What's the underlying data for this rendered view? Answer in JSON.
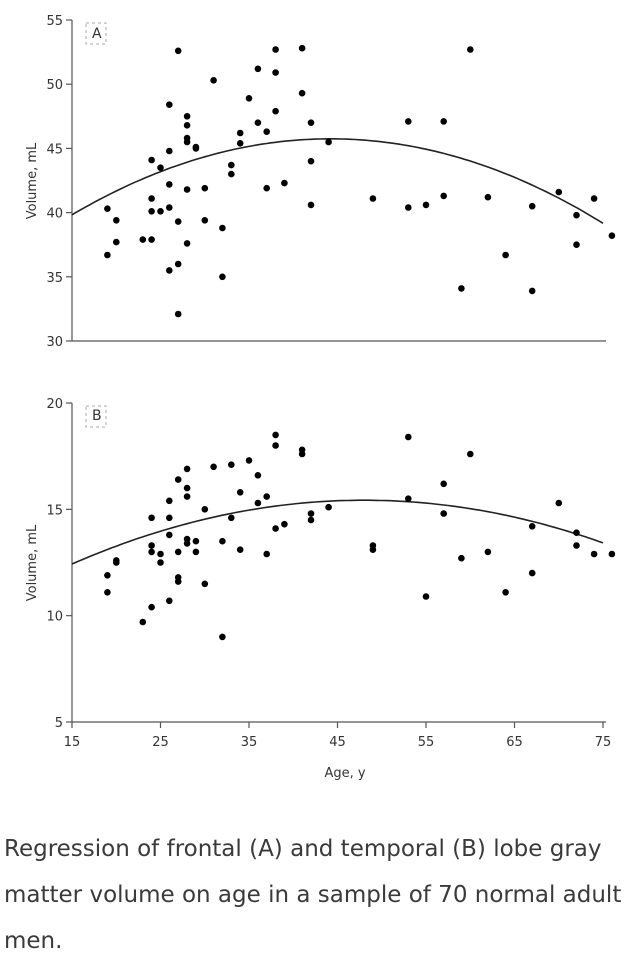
{
  "caption": "Regression of frontal (A) and temporal (B) lobe gray matter volume on age in a sample of 70 normal adult men.",
  "colors": {
    "points": "#000000",
    "curve": "#222222",
    "axis": "#555555"
  },
  "chart_data": [
    {
      "type": "scatter",
      "panel_label": "A",
      "xlabel": "",
      "ylabel": "Volume, mL",
      "xlim": [
        15,
        75
      ],
      "ylim": [
        30,
        55
      ],
      "x_ticks": [],
      "y_ticks": [
        30,
        35,
        40,
        45,
        50,
        55
      ],
      "fit": {
        "type": "quadratic",
        "a": -0.006937,
        "b": 0.6133,
        "c": 32.19
      },
      "points": [
        [
          19,
          40.3
        ],
        [
          19,
          36.7
        ],
        [
          20,
          39.4
        ],
        [
          20,
          37.7
        ],
        [
          23,
          37.9
        ],
        [
          24,
          37.9
        ],
        [
          24,
          44.1
        ],
        [
          24,
          41.1
        ],
        [
          24,
          40.1
        ],
        [
          25,
          40.1
        ],
        [
          25,
          43.5
        ],
        [
          26,
          48.4
        ],
        [
          26,
          44.8
        ],
        [
          26,
          42.2
        ],
        [
          26,
          40.4
        ],
        [
          26,
          35.5
        ],
        [
          27,
          52.6
        ],
        [
          27,
          39.3
        ],
        [
          27,
          36.0
        ],
        [
          27,
          32.1
        ],
        [
          28,
          47.5
        ],
        [
          28,
          46.8
        ],
        [
          28,
          45.8
        ],
        [
          28,
          45.5
        ],
        [
          28,
          41.8
        ],
        [
          28,
          37.6
        ],
        [
          29,
          45.1
        ],
        [
          29,
          45.0
        ],
        [
          30,
          41.9
        ],
        [
          30,
          39.4
        ],
        [
          31,
          50.3
        ],
        [
          32,
          38.8
        ],
        [
          32,
          35.0
        ],
        [
          33,
          43.7
        ],
        [
          33,
          43.0
        ],
        [
          34,
          46.2
        ],
        [
          34,
          45.4
        ],
        [
          35,
          48.9
        ],
        [
          36,
          51.2
        ],
        [
          36,
          47.0
        ],
        [
          37,
          46.3
        ],
        [
          37,
          41.9
        ],
        [
          38,
          52.7
        ],
        [
          38,
          50.9
        ],
        [
          38,
          47.9
        ],
        [
          39,
          42.3
        ],
        [
          41,
          52.8
        ],
        [
          41,
          49.3
        ],
        [
          42,
          47.0
        ],
        [
          42,
          44.0
        ],
        [
          42,
          40.6
        ],
        [
          44,
          45.5
        ],
        [
          49,
          41.1
        ],
        [
          53,
          47.1
        ],
        [
          53,
          40.4
        ],
        [
          55,
          40.6
        ],
        [
          57,
          47.1
        ],
        [
          57,
          41.3
        ],
        [
          59,
          34.1
        ],
        [
          60,
          52.7
        ],
        [
          62,
          41.2
        ],
        [
          64,
          36.7
        ],
        [
          67,
          40.5
        ],
        [
          67,
          33.9
        ],
        [
          70,
          41.6
        ],
        [
          72,
          39.8
        ],
        [
          72,
          37.5
        ],
        [
          74,
          41.1
        ],
        [
          76,
          38.2
        ]
      ]
    },
    {
      "type": "scatter",
      "panel_label": "B",
      "xlabel": "Age, y",
      "ylabel": "Volume, mL",
      "xlim": [
        15,
        75
      ],
      "ylim": [
        5,
        20
      ],
      "x_ticks": [
        15,
        25,
        35,
        45,
        55,
        65,
        75
      ],
      "y_ticks": [
        5,
        10,
        15,
        20
      ],
      "fit": {
        "type": "quadratic",
        "a": -0.002755,
        "b": 0.2645,
        "c": 9.08
      },
      "points": [
        [
          19,
          11.9
        ],
        [
          19,
          11.1
        ],
        [
          20,
          12.6
        ],
        [
          20,
          12.5
        ],
        [
          23,
          9.7
        ],
        [
          24,
          14.6
        ],
        [
          24,
          13.3
        ],
        [
          24,
          13.0
        ],
        [
          24,
          10.4
        ],
        [
          25,
          12.9
        ],
        [
          25,
          12.5
        ],
        [
          26,
          15.4
        ],
        [
          26,
          14.6
        ],
        [
          26,
          13.8
        ],
        [
          26,
          10.7
        ],
        [
          27,
          16.4
        ],
        [
          27,
          13.0
        ],
        [
          27,
          11.8
        ],
        [
          27,
          11.6
        ],
        [
          28,
          16.9
        ],
        [
          28,
          16.0
        ],
        [
          28,
          15.6
        ],
        [
          28,
          13.6
        ],
        [
          28,
          13.4
        ],
        [
          29,
          13.5
        ],
        [
          29,
          13.0
        ],
        [
          30,
          15.0
        ],
        [
          30,
          11.5
        ],
        [
          31,
          17.0
        ],
        [
          32,
          13.5
        ],
        [
          32,
          9.0
        ],
        [
          33,
          17.1
        ],
        [
          33,
          14.6
        ],
        [
          34,
          15.8
        ],
        [
          34,
          13.1
        ],
        [
          35,
          17.3
        ],
        [
          36,
          16.6
        ],
        [
          36,
          15.3
        ],
        [
          37,
          15.6
        ],
        [
          37,
          12.9
        ],
        [
          38,
          18.5
        ],
        [
          38,
          18.0
        ],
        [
          38,
          14.1
        ],
        [
          39,
          14.3
        ],
        [
          41,
          17.8
        ],
        [
          41,
          17.6
        ],
        [
          42,
          14.8
        ],
        [
          42,
          14.5
        ],
        [
          44,
          15.1
        ],
        [
          49,
          13.3
        ],
        [
          49,
          13.1
        ],
        [
          53,
          18.4
        ],
        [
          53,
          15.5
        ],
        [
          55,
          10.9
        ],
        [
          57,
          16.2
        ],
        [
          57,
          14.8
        ],
        [
          59,
          12.7
        ],
        [
          60,
          17.6
        ],
        [
          62,
          13.0
        ],
        [
          64,
          11.1
        ],
        [
          67,
          14.2
        ],
        [
          67,
          12.0
        ],
        [
          70,
          15.3
        ],
        [
          72,
          13.9
        ],
        [
          72,
          13.3
        ],
        [
          74,
          12.9
        ],
        [
          76,
          12.9
        ]
      ]
    }
  ]
}
